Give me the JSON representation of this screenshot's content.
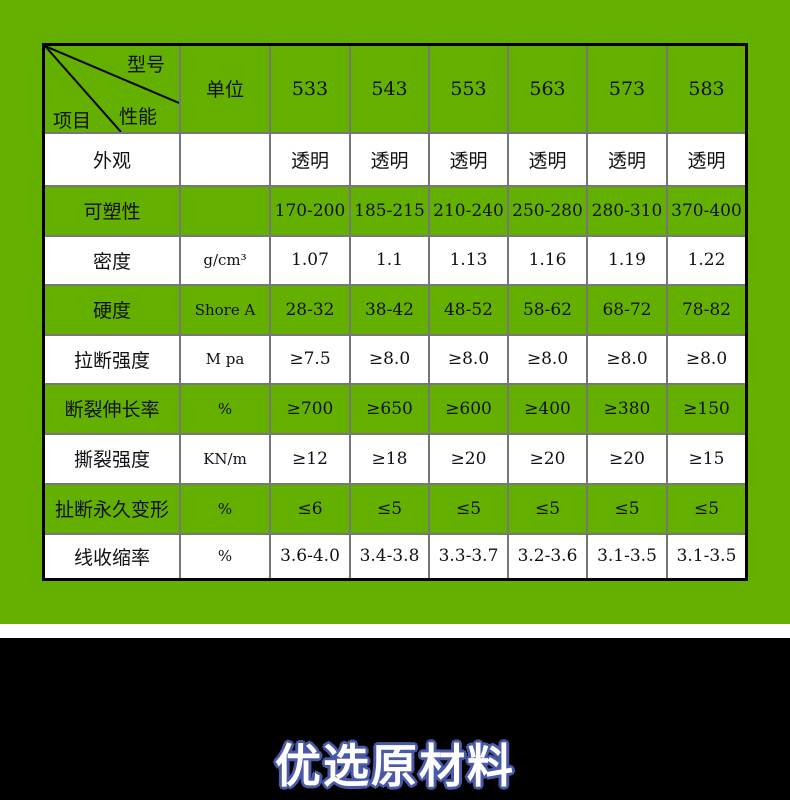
{
  "header": {
    "model_label": "型号",
    "item_label": "项目",
    "property_label": "性能",
    "unit_label": "单位",
    "models": [
      "533",
      "543",
      "553",
      "563",
      "573",
      "583"
    ]
  },
  "rows": [
    {
      "name": "外观",
      "unit": "",
      "values": [
        "透明",
        "透明",
        "透明",
        "透明",
        "透明",
        "透明"
      ]
    },
    {
      "name": "可塑性",
      "unit": "",
      "values": [
        "170-200",
        "185-215",
        "210-240",
        "250-280",
        "280-310",
        "370-400"
      ]
    },
    {
      "name": "密度",
      "unit": "g/cm³",
      "values": [
        "1.07",
        "1.1",
        "1.13",
        "1.16",
        "1.19",
        "1.22"
      ]
    },
    {
      "name": "硬度",
      "unit": "Shore A",
      "values": [
        "28-32",
        "38-42",
        "48-52",
        "58-62",
        "68-72",
        "78-82"
      ]
    },
    {
      "name": "拉断强度",
      "unit": "M pa",
      "values": [
        "≥7.5",
        "≥8.0",
        "≥8.0",
        "≥8.0",
        "≥8.0",
        "≥8.0"
      ]
    },
    {
      "name": "断裂伸长率",
      "unit": "%",
      "values": [
        "≥700",
        "≥650",
        "≥600",
        "≥400",
        "≥380",
        "≥150"
      ]
    },
    {
      "name": "撕裂强度",
      "unit": "KN/m",
      "values": [
        "≥12",
        "≥18",
        "≥20",
        "≥20",
        "≥20",
        "≥15"
      ]
    },
    {
      "name": "扯断永久变形",
      "unit": "%",
      "values": [
        "≤6",
        "≤5",
        "≤5",
        "≤5",
        "≤5",
        "≤5"
      ]
    },
    {
      "name": "线收缩率",
      "unit": "%",
      "values": [
        "3.6-4.0",
        "3.4-3.8",
        "3.3-3.7",
        "3.2-3.6",
        "3.1-3.5",
        "3.1-3.5"
      ]
    }
  ],
  "section_title": "优选原材料",
  "colors": {
    "green": "#63b000",
    "title_outline": "#4a5aa8"
  }
}
